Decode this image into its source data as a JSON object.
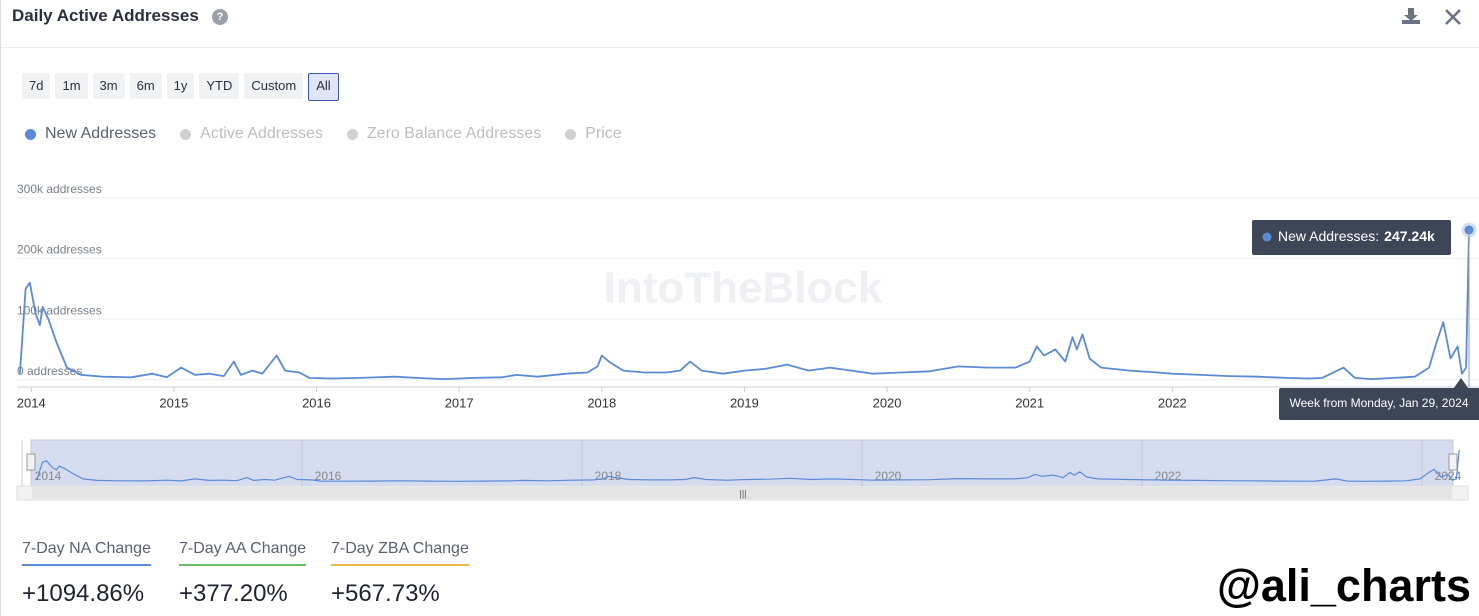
{
  "header": {
    "title": "Daily Active Addresses"
  },
  "ranges": [
    "7d",
    "1m",
    "3m",
    "6m",
    "1y",
    "YTD",
    "Custom",
    "All"
  ],
  "active_range": 7,
  "chart_data": {
    "type": "line",
    "watermark": "IntoTheBlock",
    "x": [
      2013.92,
      2013.96,
      2013.99,
      2014.03,
      2014.06,
      2014.08,
      2014.12,
      2014.18,
      2014.25,
      2014.35,
      2014.5,
      2014.7,
      2014.85,
      2014.95,
      2015.05,
      2015.15,
      2015.25,
      2015.35,
      2015.42,
      2015.47,
      2015.55,
      2015.62,
      2015.72,
      2015.78,
      2015.88,
      2015.95,
      2016.1,
      2016.3,
      2016.55,
      2016.7,
      2016.9,
      2017.1,
      2017.3,
      2017.4,
      2017.55,
      2017.75,
      2017.9,
      2017.97,
      2018.0,
      2018.05,
      2018.15,
      2018.3,
      2018.45,
      2018.55,
      2018.62,
      2018.7,
      2018.85,
      2019.0,
      2019.15,
      2019.3,
      2019.45,
      2019.6,
      2019.75,
      2019.9,
      2020.1,
      2020.3,
      2020.5,
      2020.7,
      2020.9,
      2021.0,
      2021.05,
      2021.1,
      2021.18,
      2021.25,
      2021.3,
      2021.33,
      2021.37,
      2021.42,
      2021.5,
      2021.7,
      2021.9,
      2022.0,
      2022.2,
      2022.4,
      2022.6,
      2022.8,
      2022.95,
      2023.05,
      2023.2,
      2023.28,
      2023.4,
      2023.55,
      2023.7,
      2023.8,
      2023.85,
      2023.9,
      2023.95,
      2024.0,
      2024.03,
      2024.06,
      2024.08
    ],
    "series": [
      {
        "name": "New Addresses",
        "color": "#5b8bd6",
        "values": [
          10000,
          150000,
          160000,
          110000,
          90000,
          120000,
          100000,
          60000,
          20000,
          8000,
          5000,
          4000,
          10000,
          4000,
          20000,
          8000,
          10000,
          6000,
          30000,
          8000,
          15000,
          10000,
          40000,
          15000,
          12000,
          3000,
          2000,
          3000,
          5000,
          3000,
          1000,
          3000,
          4000,
          8000,
          5000,
          10000,
          12000,
          22000,
          40000,
          30000,
          15000,
          12000,
          12000,
          15000,
          30000,
          15000,
          10000,
          15000,
          18000,
          25000,
          15000,
          20000,
          15000,
          10000,
          12000,
          14000,
          22000,
          20000,
          20000,
          30000,
          55000,
          40000,
          50000,
          30000,
          70000,
          50000,
          75000,
          35000,
          20000,
          15000,
          12000,
          10000,
          8000,
          6000,
          5000,
          3000,
          2000,
          3000,
          20000,
          3000,
          1000,
          3000,
          5000,
          20000,
          60000,
          95000,
          35000,
          55000,
          10000,
          20000,
          247240
        ]
      }
    ],
    "legend_inactive": [
      "Active Addresses",
      "Zero Balance Addresses",
      "Price"
    ],
    "xlim": [
      2013.9,
      2024.08
    ],
    "xticks": [
      2014,
      2015,
      2016,
      2017,
      2018,
      2019,
      2020,
      2021,
      2022
    ],
    "ylim": [
      -12000,
      300000
    ],
    "yticks": [
      {
        "value": 0,
        "label": "0 addresses"
      },
      {
        "value": 100000,
        "label": "100k addresses"
      },
      {
        "value": 200000,
        "label": "200k addresses"
      },
      {
        "value": 300000,
        "label": "300k addresses"
      }
    ],
    "grid": true,
    "tooltip": {
      "series": "New Addresses:",
      "value": "247.24k",
      "date": "Week from Monday, Jan 29, 2024"
    },
    "navigator_xticks": [
      2014,
      2016,
      2018,
      2020,
      2022,
      2024
    ]
  },
  "stats": [
    {
      "label": "7-Day NA Change",
      "value": "+1094.86%",
      "color": "#5b8bd6"
    },
    {
      "label": "7-Day AA Change",
      "value": "+377.20%",
      "color": "#6abf69"
    },
    {
      "label": "7-Day ZBA Change",
      "value": "+567.73%",
      "color": "#e8b84a"
    }
  ],
  "signature": "@ali_charts"
}
